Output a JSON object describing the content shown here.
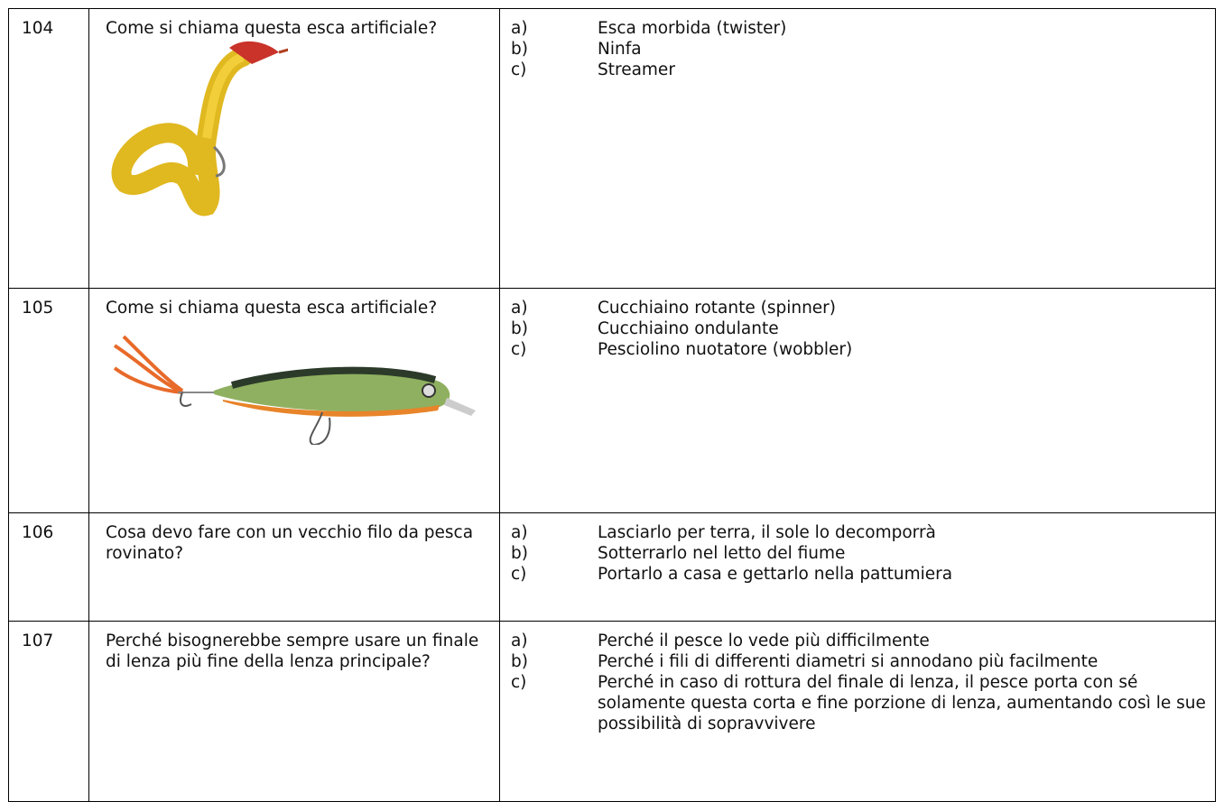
{
  "questions": [
    {
      "number": "104",
      "text": "Come si chiama questa esca artificiale?",
      "answers": [
        {
          "letter": "a)",
          "text": "Esca morbida (twister)"
        },
        {
          "letter": "b)",
          "text": "Ninfa"
        },
        {
          "letter": "c)",
          "text": "Streamer"
        }
      ]
    },
    {
      "number": "105",
      "text": "Come si chiama questa esca artificiale?",
      "answers": [
        {
          "letter": "a)",
          "text": "Cucchiaino rotante (spinner)"
        },
        {
          "letter": "b)",
          "text": "Cucchiaino ondulante"
        },
        {
          "letter": "c)",
          "text": "Pesciolino nuotatore (wobbler)"
        }
      ]
    },
    {
      "number": "106",
      "text": "Cosa devo fare con un vecchio filo da pesca rovinato?",
      "answers": [
        {
          "letter": "a)",
          "text": "Lasciarlo per terra, il sole lo decomporrà"
        },
        {
          "letter": "b)",
          "text": "Sotterrarlo nel letto del fiume"
        },
        {
          "letter": "c)",
          "text": "Portarlo a casa e gettarlo nella pattumiera"
        }
      ]
    },
    {
      "number": "107",
      "text": "Perché bisognerebbe sempre usare un finale di lenza più fine della lenza principale?",
      "answers": [
        {
          "letter": "a)",
          "text": "Perché il pesce lo vede più difficilmente"
        },
        {
          "letter": "b)",
          "text": "Perché i fili di differenti diametri si annodano più facilmente"
        },
        {
          "letter": "c)",
          "text": "Perché in caso di rottura del finale di lenza, il pesce porta con sé solamente questa corta e fine porzione di lenza, aumentando così le sue possibilità di sopravvivere"
        }
      ]
    }
  ]
}
